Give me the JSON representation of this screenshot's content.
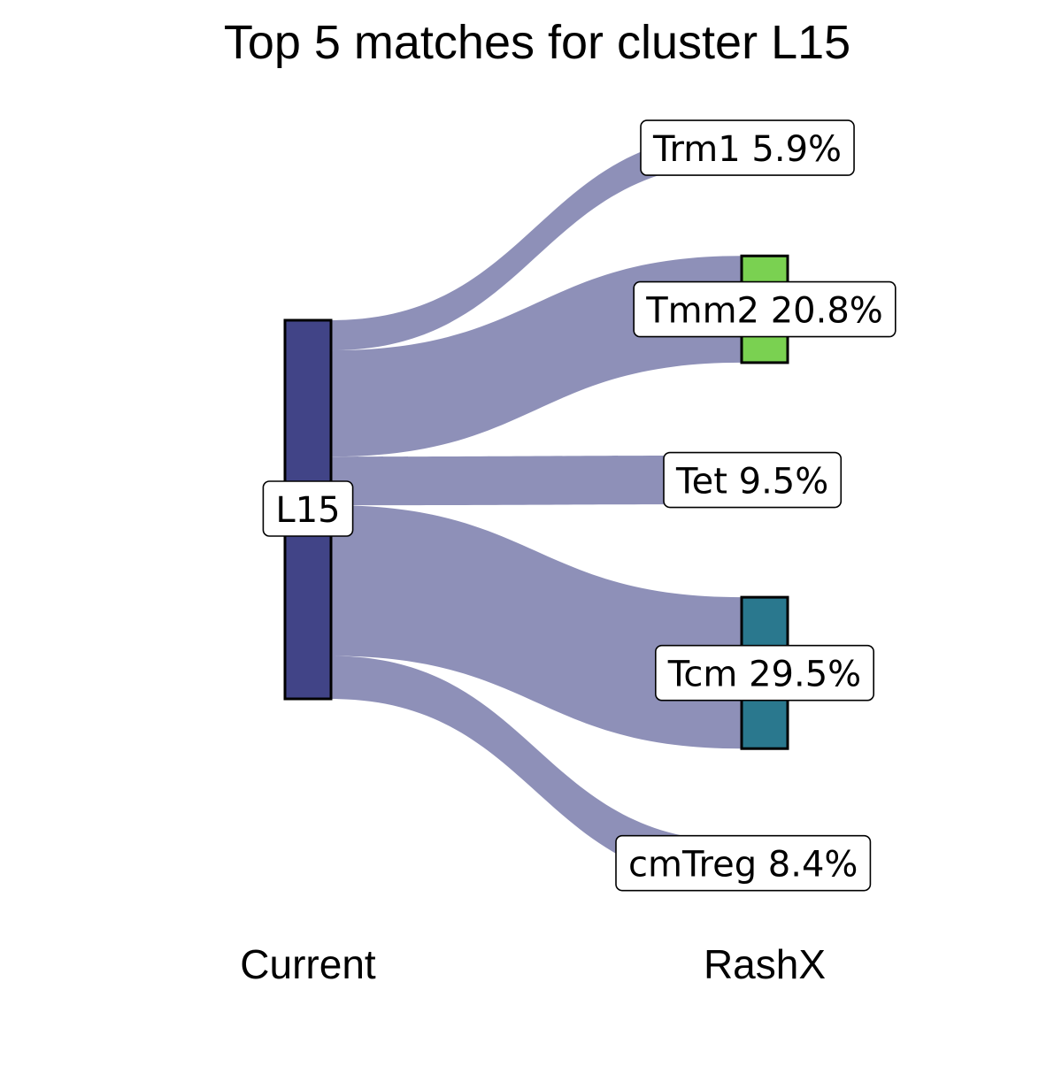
{
  "title": "Top 5 matches for cluster L15",
  "axes": {
    "left_label": "Current",
    "right_label": "RashX"
  },
  "source": {
    "label": "L15",
    "color": "#414487"
  },
  "flow_color": "#8e90b8",
  "targets": [
    {
      "name": "Trm1",
      "label": "Trm1 5.9%",
      "percent": 5.9,
      "has_bar": false,
      "color": null
    },
    {
      "name": "Tmm2",
      "label": "Tmm2 20.8%",
      "percent": 20.8,
      "has_bar": true,
      "color": "#7ad151"
    },
    {
      "name": "Tet",
      "label": "Tet 9.5%",
      "percent": 9.5,
      "has_bar": false,
      "color": null
    },
    {
      "name": "Tcm",
      "label": "Tcm 29.5%",
      "percent": 29.5,
      "has_bar": true,
      "color": "#2a788e"
    },
    {
      "name": "cmTreg",
      "label": "cmTreg 8.4%",
      "percent": 8.4,
      "has_bar": false,
      "color": null
    }
  ]
}
